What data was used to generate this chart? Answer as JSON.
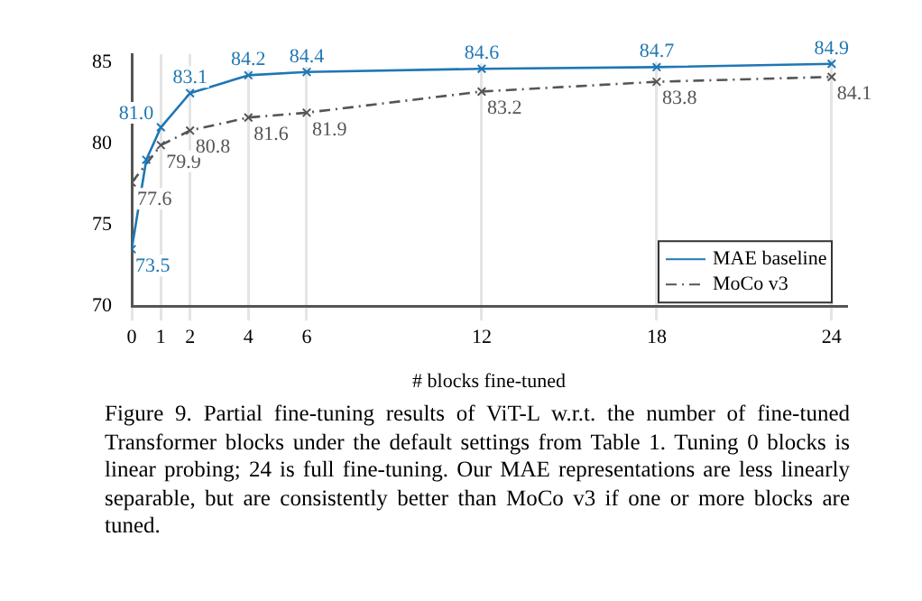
{
  "chart_data": {
    "type": "line",
    "xlabel": "# blocks fine-tuned",
    "xlim": [
      0,
      24.5
    ],
    "xticks": [
      0,
      1,
      2,
      4,
      6,
      12,
      18,
      24
    ],
    "ylim": [
      70,
      85.5
    ],
    "yticks": [
      70,
      75,
      80,
      85
    ],
    "grid": "x",
    "legend": "bottom right",
    "marker": "cross",
    "series": [
      {
        "name": "MAE baseline",
        "color": "#1f77b4",
        "line_style": "solid",
        "x": [
          0,
          0.5,
          1,
          2,
          4,
          6,
          12,
          18,
          24
        ],
        "values": [
          73.5,
          79.0,
          81.0,
          83.1,
          84.2,
          84.4,
          84.6,
          84.7,
          84.9
        ],
        "value_labels": [
          "73.5",
          null,
          "81.0",
          "83.1",
          "84.2",
          "84.4",
          "84.6",
          "84.7",
          "84.9"
        ]
      },
      {
        "name": "MoCo v3",
        "color": "#555555",
        "line_style": "dashed",
        "x": [
          0,
          1,
          2,
          4,
          6,
          12,
          18,
          24
        ],
        "values": [
          77.6,
          79.9,
          80.8,
          81.6,
          81.9,
          83.2,
          83.8,
          84.1
        ],
        "value_labels": [
          "77.6",
          "79.9",
          "80.8",
          "81.6",
          "81.9",
          "83.2",
          "83.8",
          "84.1"
        ]
      }
    ],
    "annotations": [
      "Figure 9. Partial fine-tuning results of ViT-L w.r.t. the number of fine-tuned Transformer blocks under the default settings from Table 1. Tuning 0 blocks is linear probing; 24 is full fine-tuning. Our MAE representations are less linearly separable, but are consistently better than MoCo v3 if one or more blocks are tuned."
    ]
  }
}
